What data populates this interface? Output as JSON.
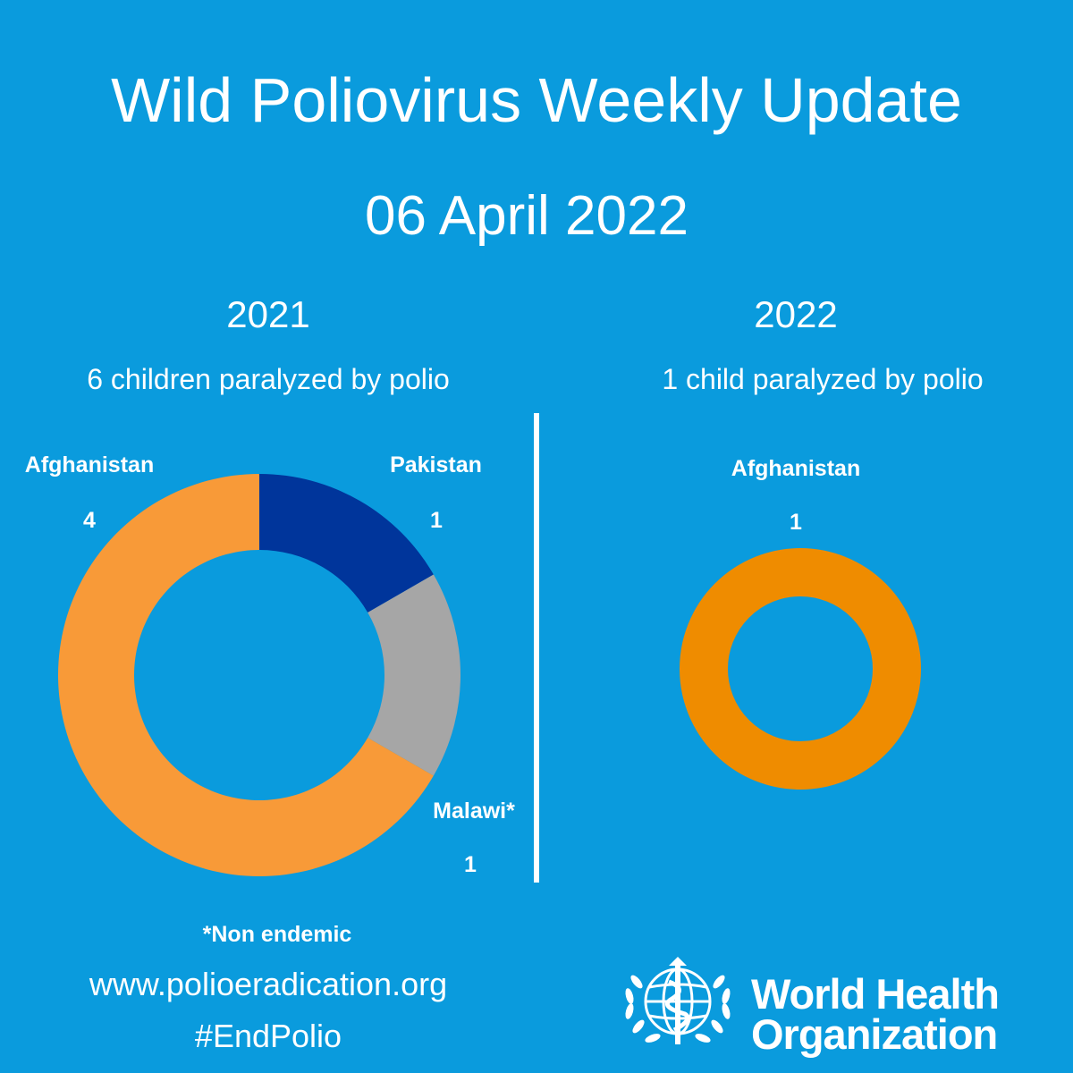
{
  "title": "Wild Poliovirus Weekly Update",
  "date": "06 April 2022",
  "chart_data": [
    {
      "type": "pie",
      "title": "2021",
      "subtitle": "6 children paralyzed by polio",
      "donut": true,
      "categories": [
        "Pakistan",
        "Malawi*",
        "Afghanistan"
      ],
      "values": [
        1,
        1,
        4
      ],
      "colors": [
        "#00359b",
        "#a6a6a6",
        "#f89a38"
      ]
    },
    {
      "type": "pie",
      "title": "2022",
      "subtitle": "1 child paralyzed by polio",
      "donut": true,
      "categories": [
        "Afghanistan"
      ],
      "values": [
        1
      ],
      "colors": [
        "#ef8c00"
      ]
    }
  ],
  "footnote": "*Non endemic",
  "website": "www.polioeradication.org",
  "hashtag": "#EndPolio",
  "org": {
    "line1": "World Health",
    "line2": "Organization",
    "emblem": "who-emblem-icon"
  }
}
